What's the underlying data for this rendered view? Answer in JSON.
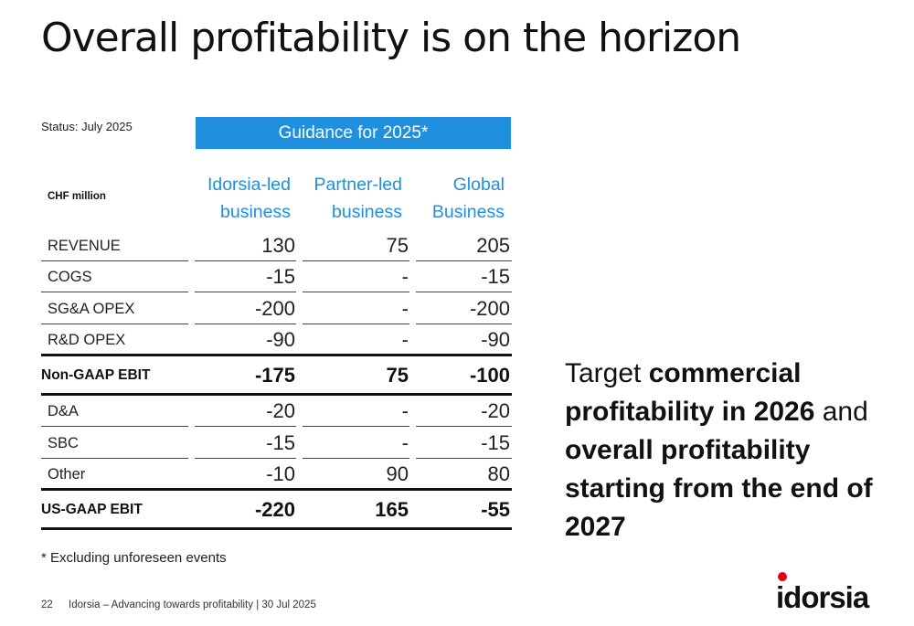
{
  "title": "Overall profitability is on the horizon",
  "status": "Status: July 2025",
  "guidance_header": "Guidance for 2025*",
  "unit_label": "CHF million",
  "columns": [
    {
      "line1": "Idorsia-led",
      "line2": "business"
    },
    {
      "line1": "Partner-led",
      "line2": "business"
    },
    {
      "line1": "Global",
      "line2": "Business"
    }
  ],
  "rows": [
    {
      "label": "REVENUE",
      "values": [
        "130",
        "75",
        "205"
      ]
    },
    {
      "label": "COGS",
      "values": [
        "-15",
        "-",
        "-15"
      ]
    },
    {
      "label": "SG&A OPEX",
      "values": [
        "-200",
        "-",
        "-200"
      ]
    },
    {
      "label": "R&D OPEX",
      "values": [
        "-90",
        "-",
        "-90"
      ]
    },
    {
      "label": "Non-GAAP EBIT",
      "values": [
        "-175",
        "75",
        "-100"
      ]
    },
    {
      "label": "D&A",
      "values": [
        "-20",
        "-",
        "-20"
      ]
    },
    {
      "label": "SBC",
      "values": [
        "-15",
        "-",
        "-15"
      ]
    },
    {
      "label": "Other",
      "values": [
        "-10",
        "90",
        "80"
      ]
    },
    {
      "label": "US-GAAP EBIT",
      "values": [
        "-220",
        "165",
        "-55"
      ]
    }
  ],
  "footnote": "* Excluding unforeseen events",
  "side_text": {
    "p1": "Target ",
    "b1": "commercial profitability in 2026",
    "p2": " and ",
    "b2": "overall profitability starting from the end of 2027"
  },
  "footer": {
    "page_number": "22",
    "text": "Idorsia – Advancing towards profitability | 30 Jul 2025"
  },
  "logo": {
    "text": "idorsia",
    "dot_color": "#e2001a",
    "icon": "idorsia-logo"
  },
  "colors": {
    "accent": "#1f8fde",
    "text": "#111111"
  }
}
